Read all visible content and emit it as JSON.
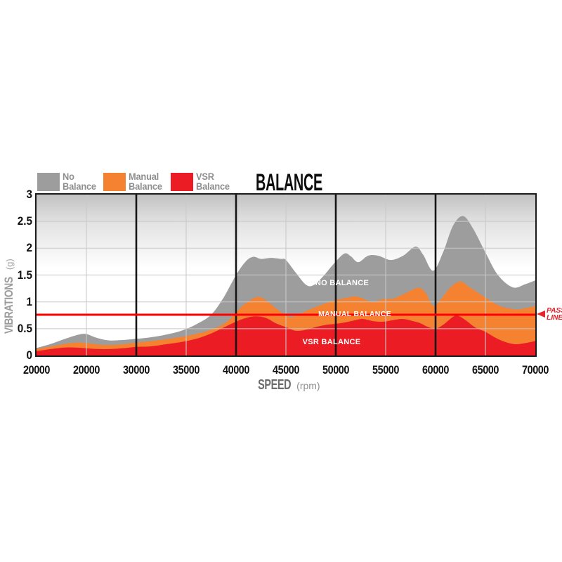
{
  "title": "BALANCE",
  "legend": {
    "items": [
      {
        "line1": "No",
        "line2": "Balance",
        "color": "#9d9d9d"
      },
      {
        "line1": "Manual",
        "line2": "Balance",
        "color": "#f58230"
      },
      {
        "line1": "VSR",
        "line2": "Balance",
        "color": "#ec1c24"
      }
    ]
  },
  "axes": {
    "y_title": "VIBRATIONS",
    "y_unit": "(g)",
    "x_title": "SPEED",
    "x_unit": "(rpm)"
  },
  "annotations": {
    "no_balance": "NO BALANCE",
    "manual_balance": "MANUAL BALANCE",
    "vsr_balance": "VSR BALANCE",
    "pass_line": {
      "line1": "PASS",
      "line2": "LINE"
    }
  },
  "colors": {
    "no_balance_fill": "#9d9d9d",
    "manual_balance_fill": "#f58230",
    "vsr_balance_fill": "#ec1c24",
    "pass_line": "#fe0000",
    "grid_light": "#c9c9c9",
    "grid_black": "#161616",
    "plot_border": "#1a1a1a",
    "top_gradient": "#c2c2c2"
  },
  "chart_data": {
    "type": "area",
    "title": "BALANCE",
    "xlabel": "SPEED (rpm)",
    "ylabel": "VIBRATIONS (g)",
    "ylim": [
      0,
      3
    ],
    "y_tick_labels": [
      "3",
      "2.5",
      "2",
      "1.5",
      "1",
      "0.5",
      "0"
    ],
    "y_tick_values": [
      3,
      2.5,
      2,
      1.5,
      1,
      0.5,
      0
    ],
    "x_tick_labels": [
      "20000",
      "20000",
      "30000",
      "35000",
      "40000",
      "45000",
      "50000",
      "55000",
      "60000",
      "65000",
      "70000"
    ],
    "x_axis_note": "x values in points are tick indices 0-10 mapping onto x_tick_labels (second label reads 20000 in source graphic)",
    "pass_line_g": 0.76,
    "grid": {
      "h_step_g": 0.5,
      "black_vertical_ticks": [
        2,
        4,
        6,
        8
      ],
      "gray_vertical_ticks": [
        1,
        3,
        5,
        7,
        9
      ]
    },
    "legend_position": "top-left",
    "series": [
      {
        "name": "No Balance",
        "color": "#9d9d9d",
        "points": [
          [
            0,
            0.14
          ],
          [
            0.3,
            0.22
          ],
          [
            0.6,
            0.32
          ],
          [
            0.85,
            0.39
          ],
          [
            1,
            0.4
          ],
          [
            1.2,
            0.33
          ],
          [
            1.45,
            0.28
          ],
          [
            1.75,
            0.29
          ],
          [
            2,
            0.31
          ],
          [
            2.3,
            0.34
          ],
          [
            2.6,
            0.39
          ],
          [
            2.9,
            0.46
          ],
          [
            3.2,
            0.58
          ],
          [
            3.5,
            0.76
          ],
          [
            3.75,
            1.08
          ],
          [
            4,
            1.5
          ],
          [
            4.2,
            1.76
          ],
          [
            4.35,
            1.84
          ],
          [
            4.5,
            1.8
          ],
          [
            4.7,
            1.82
          ],
          [
            4.9,
            1.8
          ],
          [
            5,
            1.78
          ],
          [
            5.2,
            1.54
          ],
          [
            5.4,
            1.32
          ],
          [
            5.55,
            1.31
          ],
          [
            5.75,
            1.48
          ],
          [
            5.95,
            1.7
          ],
          [
            6.17,
            1.9
          ],
          [
            6.3,
            1.85
          ],
          [
            6.45,
            1.74
          ],
          [
            6.65,
            1.86
          ],
          [
            6.85,
            1.86
          ],
          [
            7.1,
            1.78
          ],
          [
            7.35,
            1.86
          ],
          [
            7.6,
            2.03
          ],
          [
            7.75,
            1.88
          ],
          [
            7.95,
            1.58
          ],
          [
            8.15,
            1.92
          ],
          [
            8.35,
            2.42
          ],
          [
            8.55,
            2.6
          ],
          [
            8.75,
            2.37
          ],
          [
            9,
            1.92
          ],
          [
            9.25,
            1.5
          ],
          [
            9.55,
            1.27
          ],
          [
            9.8,
            1.33
          ],
          [
            10,
            1.4
          ]
        ]
      },
      {
        "name": "Manual Balance",
        "color": "#f58230",
        "points": [
          [
            0,
            0.12
          ],
          [
            0.3,
            0.17
          ],
          [
            0.6,
            0.22
          ],
          [
            0.8,
            0.24
          ],
          [
            1,
            0.23
          ],
          [
            1.3,
            0.2
          ],
          [
            1.6,
            0.2
          ],
          [
            2,
            0.24
          ],
          [
            2.4,
            0.28
          ],
          [
            2.8,
            0.33
          ],
          [
            3.1,
            0.38
          ],
          [
            3.4,
            0.45
          ],
          [
            3.7,
            0.56
          ],
          [
            3.9,
            0.7
          ],
          [
            4.1,
            0.9
          ],
          [
            4.3,
            1.04
          ],
          [
            4.45,
            1.09
          ],
          [
            4.6,
            1.03
          ],
          [
            4.8,
            0.88
          ],
          [
            5,
            0.75
          ],
          [
            5.1,
            0.71
          ],
          [
            5.25,
            0.76
          ],
          [
            5.45,
            0.85
          ],
          [
            5.7,
            0.94
          ],
          [
            5.95,
            1.02
          ],
          [
            6.2,
            1.07
          ],
          [
            6.4,
            1.1
          ],
          [
            6.6,
            1.04
          ],
          [
            6.75,
            1
          ],
          [
            6.95,
            1.05
          ],
          [
            7.15,
            1.06
          ],
          [
            7.35,
            1.14
          ],
          [
            7.55,
            1.23
          ],
          [
            7.67,
            1.26
          ],
          [
            7.8,
            1.17
          ],
          [
            7.95,
            0.93
          ],
          [
            8.1,
            1.04
          ],
          [
            8.3,
            1.27
          ],
          [
            8.5,
            1.38
          ],
          [
            8.7,
            1.26
          ],
          [
            9,
            1.08
          ],
          [
            9.3,
            0.92
          ],
          [
            9.6,
            0.86
          ],
          [
            9.8,
            0.88
          ],
          [
            10,
            0.92
          ]
        ]
      },
      {
        "name": "VSR Balance",
        "color": "#ec1c24",
        "points": [
          [
            0,
            0.08
          ],
          [
            0.3,
            0.12
          ],
          [
            0.6,
            0.15
          ],
          [
            0.9,
            0.14
          ],
          [
            1.2,
            0.12
          ],
          [
            1.5,
            0.12
          ],
          [
            1.8,
            0.14
          ],
          [
            2,
            0.16
          ],
          [
            2.3,
            0.17
          ],
          [
            2.6,
            0.21
          ],
          [
            2.9,
            0.25
          ],
          [
            3.2,
            0.31
          ],
          [
            3.5,
            0.41
          ],
          [
            3.75,
            0.52
          ],
          [
            4,
            0.63
          ],
          [
            4.2,
            0.7
          ],
          [
            4.4,
            0.73
          ],
          [
            4.6,
            0.7
          ],
          [
            4.8,
            0.6
          ],
          [
            5,
            0.53
          ],
          [
            5.2,
            0.46
          ],
          [
            5.4,
            0.48
          ],
          [
            5.6,
            0.53
          ],
          [
            5.8,
            0.57
          ],
          [
            6,
            0.59
          ],
          [
            6.2,
            0.62
          ],
          [
            6.4,
            0.66
          ],
          [
            6.55,
            0.68
          ],
          [
            6.75,
            0.64
          ],
          [
            6.95,
            0.63
          ],
          [
            7.15,
            0.66
          ],
          [
            7.35,
            0.68
          ],
          [
            7.55,
            0.64
          ],
          [
            7.7,
            0.6
          ],
          [
            7.85,
            0.53
          ],
          [
            8,
            0.5
          ],
          [
            8.15,
            0.57
          ],
          [
            8.35,
            0.72
          ],
          [
            8.45,
            0.74
          ],
          [
            8.6,
            0.66
          ],
          [
            8.8,
            0.52
          ],
          [
            9,
            0.44
          ],
          [
            9.2,
            0.33
          ],
          [
            9.4,
            0.25
          ],
          [
            9.6,
            0.21
          ],
          [
            9.8,
            0.23
          ],
          [
            10,
            0.27
          ]
        ]
      }
    ]
  }
}
